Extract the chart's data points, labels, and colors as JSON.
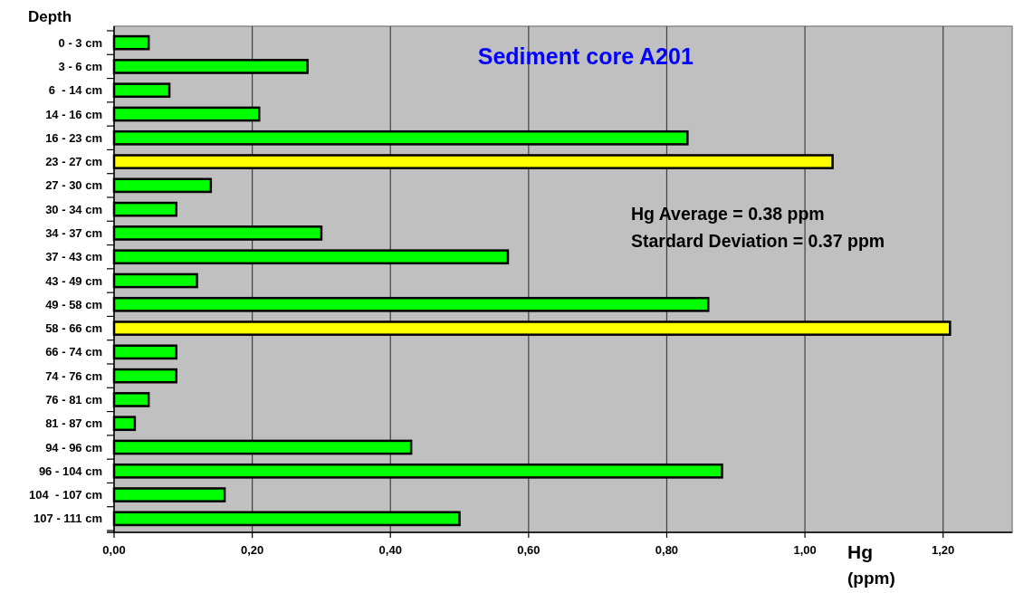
{
  "chart_data": {
    "type": "bar",
    "orientation": "horizontal",
    "title": "Sediment core A201",
    "ylabel": "Depth",
    "xlabel": "Hg\n(ppm)",
    "categories": [
      "0 - 3 cm",
      "3 - 6 cm",
      "6  - 14 cm",
      "14 - 16 cm",
      "16 - 23 cm",
      "23 - 27 cm",
      "27 - 30 cm",
      "30 - 34 cm",
      "34 - 37 cm",
      "37 - 43 cm",
      "43 - 49 cm",
      "49 - 58 cm",
      "58 - 66 cm",
      "66 - 74 cm",
      "74 - 76 cm",
      "76 - 81 cm",
      "81 - 87 cm",
      "94 - 96 cm",
      "96 - 104 cm",
      "104  - 107 cm",
      "107 - 111 cm"
    ],
    "values": [
      0.05,
      0.28,
      0.08,
      0.21,
      0.83,
      1.04,
      0.14,
      0.09,
      0.3,
      0.57,
      0.12,
      0.86,
      1.21,
      0.09,
      0.09,
      0.05,
      0.03,
      0.43,
      0.88,
      0.16,
      0.5
    ],
    "colors": [
      "#00ff00",
      "#00ff00",
      "#00ff00",
      "#00ff00",
      "#00ff00",
      "#ffff00",
      "#00ff00",
      "#00ff00",
      "#00ff00",
      "#00ff00",
      "#00ff00",
      "#00ff00",
      "#ffff00",
      "#00ff00",
      "#00ff00",
      "#00ff00",
      "#00ff00",
      "#00ff00",
      "#00ff00",
      "#00ff00",
      "#00ff00"
    ],
    "xlim": [
      0,
      1.3
    ],
    "xticks": [
      {
        "value": 0,
        "label": "0,00"
      },
      {
        "value": 0.2,
        "label": "0,20"
      },
      {
        "value": 0.4,
        "label": "0,40"
      },
      {
        "value": 0.6,
        "label": "0,60"
      },
      {
        "value": 0.8,
        "label": "0,80"
      },
      {
        "value": 1,
        "label": "1,00"
      },
      {
        "value": 1.2,
        "label": "1,20"
      }
    ],
    "grid": "x",
    "annotations": [
      "Hg Average = 0.38 ppm",
      "Stardard Deviation = 0.37 ppm"
    ]
  }
}
